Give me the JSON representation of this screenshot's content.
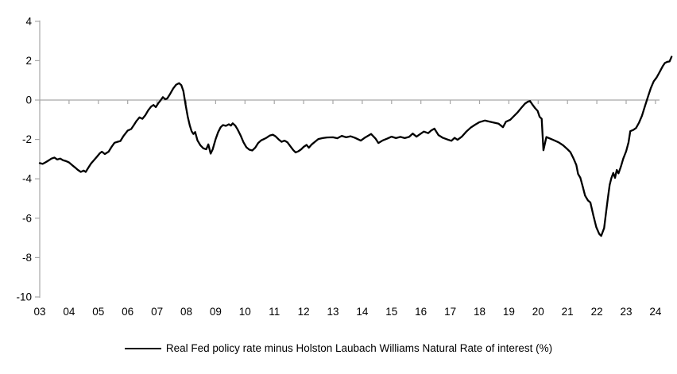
{
  "chart_data": {
    "type": "line",
    "title": "",
    "legend": "Real Fed policy rate minus Holston Laubach Williams Natural Rate of interest (%)",
    "legend_position": "bottom-center",
    "background_color": "#FFFFFF",
    "axis_color": "#A6A6A6",
    "grid": "zero-line-only",
    "y_axis": {
      "min": -10,
      "max": 4,
      "step": 2,
      "tick_labels": [
        "4",
        "2",
        "0",
        "-2",
        "-4",
        "-6",
        "-8",
        "-10"
      ]
    },
    "x_axis": {
      "first_year": 2003,
      "tick_labels": [
        "03",
        "04",
        "05",
        "06",
        "07",
        "08",
        "09",
        "10",
        "11",
        "12",
        "13",
        "14",
        "15",
        "16",
        "17",
        "18",
        "19",
        "20",
        "21",
        "22",
        "23",
        "24"
      ]
    },
    "series": [
      {
        "name": "Real Fed policy rate minus Holston Laubach Williams Natural Rate of interest (%)",
        "color": "#000000",
        "points": [
          [
            2003.0,
            -3.2
          ],
          [
            2003.1,
            -3.24
          ],
          [
            2003.2,
            -3.16
          ],
          [
            2003.3,
            -3.07
          ],
          [
            2003.4,
            -2.97
          ],
          [
            2003.5,
            -2.92
          ],
          [
            2003.6,
            -3.02
          ],
          [
            2003.7,
            -2.97
          ],
          [
            2003.8,
            -3.06
          ],
          [
            2003.9,
            -3.1
          ],
          [
            2004.0,
            -3.17
          ],
          [
            2004.1,
            -3.3
          ],
          [
            2004.2,
            -3.42
          ],
          [
            2004.3,
            -3.55
          ],
          [
            2004.4,
            -3.65
          ],
          [
            2004.5,
            -3.58
          ],
          [
            2004.57,
            -3.65
          ],
          [
            2004.65,
            -3.45
          ],
          [
            2004.75,
            -3.22
          ],
          [
            2004.85,
            -3.05
          ],
          [
            2004.95,
            -2.88
          ],
          [
            2005.05,
            -2.7
          ],
          [
            2005.12,
            -2.62
          ],
          [
            2005.22,
            -2.74
          ],
          [
            2005.35,
            -2.62
          ],
          [
            2005.45,
            -2.38
          ],
          [
            2005.55,
            -2.17
          ],
          [
            2005.65,
            -2.12
          ],
          [
            2005.75,
            -2.08
          ],
          [
            2005.85,
            -1.84
          ],
          [
            2006.0,
            -1.55
          ],
          [
            2006.12,
            -1.47
          ],
          [
            2006.22,
            -1.25
          ],
          [
            2006.3,
            -1.06
          ],
          [
            2006.4,
            -0.88
          ],
          [
            2006.5,
            -0.95
          ],
          [
            2006.6,
            -0.78
          ],
          [
            2006.7,
            -0.52
          ],
          [
            2006.8,
            -0.33
          ],
          [
            2006.88,
            -0.25
          ],
          [
            2006.96,
            -0.36
          ],
          [
            2007.05,
            -0.15
          ],
          [
            2007.12,
            -0.02
          ],
          [
            2007.2,
            0.15
          ],
          [
            2007.28,
            0.04
          ],
          [
            2007.35,
            0.08
          ],
          [
            2007.45,
            0.32
          ],
          [
            2007.55,
            0.58
          ],
          [
            2007.65,
            0.78
          ],
          [
            2007.75,
            0.86
          ],
          [
            2007.83,
            0.76
          ],
          [
            2007.9,
            0.45
          ],
          [
            2007.97,
            -0.2
          ],
          [
            2008.05,
            -0.85
          ],
          [
            2008.12,
            -1.3
          ],
          [
            2008.18,
            -1.58
          ],
          [
            2008.24,
            -1.72
          ],
          [
            2008.3,
            -1.62
          ],
          [
            2008.38,
            -2.05
          ],
          [
            2008.48,
            -2.3
          ],
          [
            2008.58,
            -2.45
          ],
          [
            2008.68,
            -2.5
          ],
          [
            2008.75,
            -2.25
          ],
          [
            2008.83,
            -2.72
          ],
          [
            2008.9,
            -2.5
          ],
          [
            2009.0,
            -1.98
          ],
          [
            2009.08,
            -1.64
          ],
          [
            2009.17,
            -1.38
          ],
          [
            2009.25,
            -1.27
          ],
          [
            2009.35,
            -1.31
          ],
          [
            2009.45,
            -1.23
          ],
          [
            2009.52,
            -1.3
          ],
          [
            2009.58,
            -1.18
          ],
          [
            2009.67,
            -1.3
          ],
          [
            2009.75,
            -1.5
          ],
          [
            2009.85,
            -1.8
          ],
          [
            2009.95,
            -2.15
          ],
          [
            2010.05,
            -2.4
          ],
          [
            2010.15,
            -2.52
          ],
          [
            2010.25,
            -2.56
          ],
          [
            2010.35,
            -2.42
          ],
          [
            2010.45,
            -2.18
          ],
          [
            2010.55,
            -2.05
          ],
          [
            2010.65,
            -1.98
          ],
          [
            2010.75,
            -1.9
          ],
          [
            2010.85,
            -1.8
          ],
          [
            2010.95,
            -1.76
          ],
          [
            2011.05,
            -1.85
          ],
          [
            2011.15,
            -2.0
          ],
          [
            2011.25,
            -2.12
          ],
          [
            2011.35,
            -2.06
          ],
          [
            2011.45,
            -2.15
          ],
          [
            2011.55,
            -2.35
          ],
          [
            2011.65,
            -2.55
          ],
          [
            2011.73,
            -2.66
          ],
          [
            2011.82,
            -2.6
          ],
          [
            2011.92,
            -2.5
          ],
          [
            2012.0,
            -2.38
          ],
          [
            2012.1,
            -2.28
          ],
          [
            2012.18,
            -2.42
          ],
          [
            2012.28,
            -2.25
          ],
          [
            2012.4,
            -2.1
          ],
          [
            2012.5,
            -1.98
          ],
          [
            2012.65,
            -1.93
          ],
          [
            2012.8,
            -1.9
          ],
          [
            2013.0,
            -1.89
          ],
          [
            2013.15,
            -1.94
          ],
          [
            2013.3,
            -1.82
          ],
          [
            2013.45,
            -1.89
          ],
          [
            2013.6,
            -1.84
          ],
          [
            2013.75,
            -1.92
          ],
          [
            2013.95,
            -2.06
          ],
          [
            2014.1,
            -1.9
          ],
          [
            2014.3,
            -1.72
          ],
          [
            2014.45,
            -1.95
          ],
          [
            2014.55,
            -2.18
          ],
          [
            2014.7,
            -2.05
          ],
          [
            2014.85,
            -1.96
          ],
          [
            2015.0,
            -1.86
          ],
          [
            2015.15,
            -1.93
          ],
          [
            2015.3,
            -1.87
          ],
          [
            2015.45,
            -1.93
          ],
          [
            2015.6,
            -1.87
          ],
          [
            2015.72,
            -1.7
          ],
          [
            2015.85,
            -1.86
          ],
          [
            2015.95,
            -1.75
          ],
          [
            2016.1,
            -1.6
          ],
          [
            2016.25,
            -1.68
          ],
          [
            2016.35,
            -1.55
          ],
          [
            2016.46,
            -1.45
          ],
          [
            2016.6,
            -1.78
          ],
          [
            2016.75,
            -1.92
          ],
          [
            2016.9,
            -2.0
          ],
          [
            2017.04,
            -2.07
          ],
          [
            2017.15,
            -1.92
          ],
          [
            2017.25,
            -2.02
          ],
          [
            2017.4,
            -1.85
          ],
          [
            2017.55,
            -1.6
          ],
          [
            2017.7,
            -1.4
          ],
          [
            2017.85,
            -1.25
          ],
          [
            2018.0,
            -1.12
          ],
          [
            2018.18,
            -1.04
          ],
          [
            2018.35,
            -1.1
          ],
          [
            2018.5,
            -1.15
          ],
          [
            2018.65,
            -1.2
          ],
          [
            2018.8,
            -1.38
          ],
          [
            2018.9,
            -1.1
          ],
          [
            2019.05,
            -1.0
          ],
          [
            2019.15,
            -0.85
          ],
          [
            2019.3,
            -0.62
          ],
          [
            2019.45,
            -0.35
          ],
          [
            2019.55,
            -0.18
          ],
          [
            2019.65,
            -0.08
          ],
          [
            2019.72,
            -0.05
          ],
          [
            2019.8,
            -0.22
          ],
          [
            2019.9,
            -0.42
          ],
          [
            2019.98,
            -0.55
          ],
          [
            2020.05,
            -0.85
          ],
          [
            2020.12,
            -0.95
          ],
          [
            2020.18,
            -2.55
          ],
          [
            2020.28,
            -1.88
          ],
          [
            2020.4,
            -1.95
          ],
          [
            2020.55,
            -2.05
          ],
          [
            2020.7,
            -2.15
          ],
          [
            2020.85,
            -2.3
          ],
          [
            2021.0,
            -2.5
          ],
          [
            2021.1,
            -2.65
          ],
          [
            2021.2,
            -2.95
          ],
          [
            2021.3,
            -3.3
          ],
          [
            2021.36,
            -3.75
          ],
          [
            2021.44,
            -3.95
          ],
          [
            2021.52,
            -4.4
          ],
          [
            2021.6,
            -4.85
          ],
          [
            2021.7,
            -5.1
          ],
          [
            2021.78,
            -5.2
          ],
          [
            2021.88,
            -5.85
          ],
          [
            2021.98,
            -6.45
          ],
          [
            2022.08,
            -6.8
          ],
          [
            2022.15,
            -6.9
          ],
          [
            2022.25,
            -6.5
          ],
          [
            2022.32,
            -5.65
          ],
          [
            2022.38,
            -4.95
          ],
          [
            2022.44,
            -4.3
          ],
          [
            2022.5,
            -3.95
          ],
          [
            2022.56,
            -3.7
          ],
          [
            2022.62,
            -3.95
          ],
          [
            2022.68,
            -3.55
          ],
          [
            2022.74,
            -3.72
          ],
          [
            2022.82,
            -3.38
          ],
          [
            2022.9,
            -2.98
          ],
          [
            2023.0,
            -2.6
          ],
          [
            2023.08,
            -2.15
          ],
          [
            2023.14,
            -1.58
          ],
          [
            2023.24,
            -1.52
          ],
          [
            2023.34,
            -1.42
          ],
          [
            2023.44,
            -1.15
          ],
          [
            2023.54,
            -0.8
          ],
          [
            2023.64,
            -0.32
          ],
          [
            2023.74,
            0.15
          ],
          [
            2023.84,
            0.6
          ],
          [
            2023.94,
            0.95
          ],
          [
            2024.04,
            1.15
          ],
          [
            2024.14,
            1.42
          ],
          [
            2024.24,
            1.7
          ],
          [
            2024.32,
            1.88
          ],
          [
            2024.4,
            1.94
          ],
          [
            2024.48,
            1.96
          ],
          [
            2024.55,
            2.2
          ]
        ]
      }
    ]
  }
}
